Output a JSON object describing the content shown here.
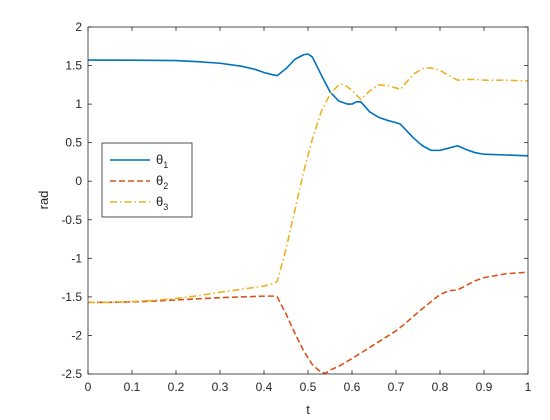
{
  "chart_data": {
    "type": "line",
    "title": "",
    "xlabel": "t",
    "ylabel": "rad",
    "xlim": [
      0,
      1
    ],
    "ylim": [
      -2.5,
      2
    ],
    "xticks": [
      0,
      0.1,
      0.2,
      0.3,
      0.4,
      0.5,
      0.6,
      0.7,
      0.8,
      0.9,
      1
    ],
    "xtick_labels": [
      "0",
      "0.1",
      "0.2",
      "0.3",
      "0.4",
      "0.5",
      "0.6",
      "0.7",
      "0.8",
      "0.9",
      "1"
    ],
    "yticks": [
      -2.5,
      -2,
      -1.5,
      -1,
      -0.5,
      0,
      0.5,
      1,
      1.5,
      2
    ],
    "ytick_labels": [
      "-2.5",
      "-2",
      "-1.5",
      "-1",
      "-0.5",
      "0",
      "0.5",
      "1",
      "1.5",
      "2"
    ],
    "grid": false,
    "legend_position": "left",
    "series": [
      {
        "name": "θ1",
        "legend_base": "θ",
        "legend_sub": "1",
        "color": "#0072BD",
        "dash": "solid",
        "x": [
          0,
          0.1,
          0.2,
          0.25,
          0.3,
          0.35,
          0.38,
          0.4,
          0.42,
          0.43,
          0.45,
          0.47,
          0.49,
          0.5,
          0.51,
          0.53,
          0.55,
          0.57,
          0.59,
          0.6,
          0.61,
          0.62,
          0.64,
          0.66,
          0.68,
          0.7,
          0.71,
          0.72,
          0.74,
          0.76,
          0.78,
          0.8,
          0.82,
          0.84,
          0.86,
          0.88,
          0.9,
          0.95,
          1.0
        ],
        "y": [
          1.571,
          1.57,
          1.565,
          1.55,
          1.53,
          1.49,
          1.45,
          1.41,
          1.38,
          1.37,
          1.46,
          1.58,
          1.64,
          1.65,
          1.61,
          1.38,
          1.16,
          1.04,
          1.0,
          1.0,
          1.03,
          1.03,
          0.9,
          0.83,
          0.79,
          0.76,
          0.74,
          0.68,
          0.56,
          0.46,
          0.4,
          0.4,
          0.43,
          0.46,
          0.41,
          0.37,
          0.35,
          0.34,
          0.33
        ]
      },
      {
        "name": "θ2",
        "legend_base": "θ",
        "legend_sub": "2",
        "color": "#D95319",
        "dash": "dashed",
        "x": [
          0,
          0.05,
          0.1,
          0.15,
          0.2,
          0.25,
          0.3,
          0.35,
          0.4,
          0.42,
          0.43,
          0.45,
          0.47,
          0.49,
          0.51,
          0.53,
          0.54,
          0.55,
          0.57,
          0.6,
          0.65,
          0.7,
          0.72,
          0.75,
          0.78,
          0.8,
          0.82,
          0.84,
          0.86,
          0.88,
          0.9,
          0.95,
          1.0
        ],
        "y": [
          -1.571,
          -1.57,
          -1.565,
          -1.555,
          -1.54,
          -1.525,
          -1.51,
          -1.5,
          -1.49,
          -1.49,
          -1.5,
          -1.72,
          -1.97,
          -2.2,
          -2.38,
          -2.48,
          -2.49,
          -2.45,
          -2.4,
          -2.3,
          -2.12,
          -1.94,
          -1.85,
          -1.7,
          -1.56,
          -1.47,
          -1.42,
          -1.41,
          -1.35,
          -1.29,
          -1.25,
          -1.2,
          -1.18
        ]
      },
      {
        "name": "θ3",
        "legend_base": "θ",
        "legend_sub": "3",
        "color": "#EDB120",
        "dash": "dashdot",
        "x": [
          0,
          0.05,
          0.1,
          0.15,
          0.2,
          0.25,
          0.3,
          0.35,
          0.4,
          0.42,
          0.43,
          0.45,
          0.47,
          0.49,
          0.51,
          0.53,
          0.55,
          0.57,
          0.58,
          0.6,
          0.62,
          0.64,
          0.66,
          0.68,
          0.7,
          0.71,
          0.72,
          0.74,
          0.76,
          0.78,
          0.8,
          0.82,
          0.84,
          0.86,
          0.88,
          0.9,
          0.95,
          1.0
        ],
        "y": [
          -1.571,
          -1.57,
          -1.56,
          -1.545,
          -1.52,
          -1.485,
          -1.44,
          -1.4,
          -1.36,
          -1.33,
          -1.3,
          -0.88,
          -0.38,
          0.12,
          0.55,
          0.9,
          1.13,
          1.25,
          1.26,
          1.18,
          1.06,
          1.17,
          1.25,
          1.24,
          1.21,
          1.19,
          1.26,
          1.39,
          1.46,
          1.47,
          1.44,
          1.37,
          1.31,
          1.32,
          1.32,
          1.31,
          1.31,
          1.3
        ]
      }
    ]
  }
}
